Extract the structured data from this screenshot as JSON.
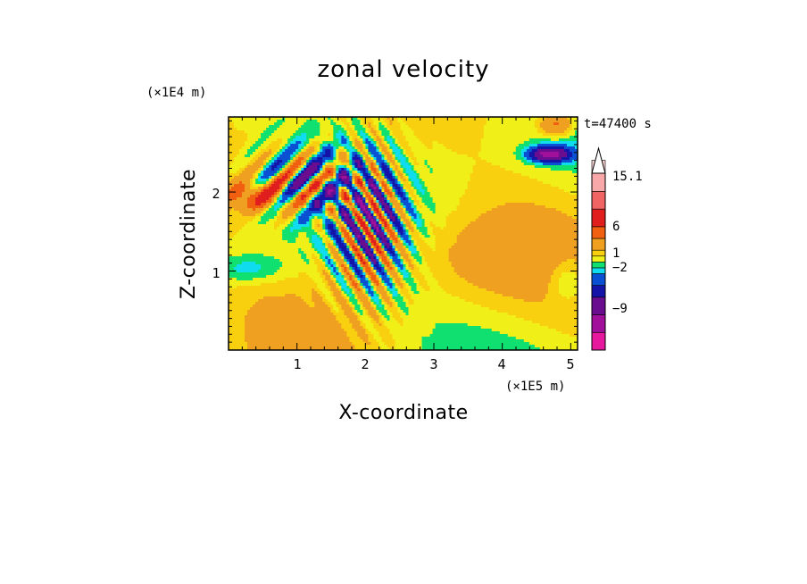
{
  "chart_data": {
    "type": "heatmap",
    "title": "zonal velocity",
    "xlabel": "X-coordinate",
    "ylabel": "Z-coordinate",
    "x_unit": "(×1E5 m)",
    "y_unit": "(×1E4 m)",
    "time_label": "t=47400 s",
    "x_ticks": [
      "1",
      "2",
      "3",
      "4",
      "5"
    ],
    "y_ticks": [
      "1",
      "2"
    ],
    "xlim": [
      0,
      5.1
    ],
    "ylim": [
      0,
      2.95
    ],
    "colorbar": {
      "labels": [
        "15.1",
        "6",
        "1",
        "−2",
        "−9"
      ],
      "label_levels": [
        15.1,
        6,
        1,
        -2,
        -9
      ],
      "levels": [
        -15,
        -12,
        -9,
        -6,
        -4,
        -2,
        -1,
        0,
        1,
        2,
        4,
        6,
        9,
        12,
        15.1
      ],
      "colors": [
        "#e6199e",
        "#a0109a",
        "#6a0d8f",
        "#1414a8",
        "#0a50d2",
        "#10dcf0",
        "#10e070",
        "#f0f018",
        "#f8d010",
        "#f0a020",
        "#f06010",
        "#e01e1e",
        "#f06464",
        "#f8a8a8",
        "#fad2d2"
      ],
      "extend": "max"
    },
    "field_note": "2D contour field of zonal velocity; background mostly green/yellow with orange and blue wave packets"
  }
}
